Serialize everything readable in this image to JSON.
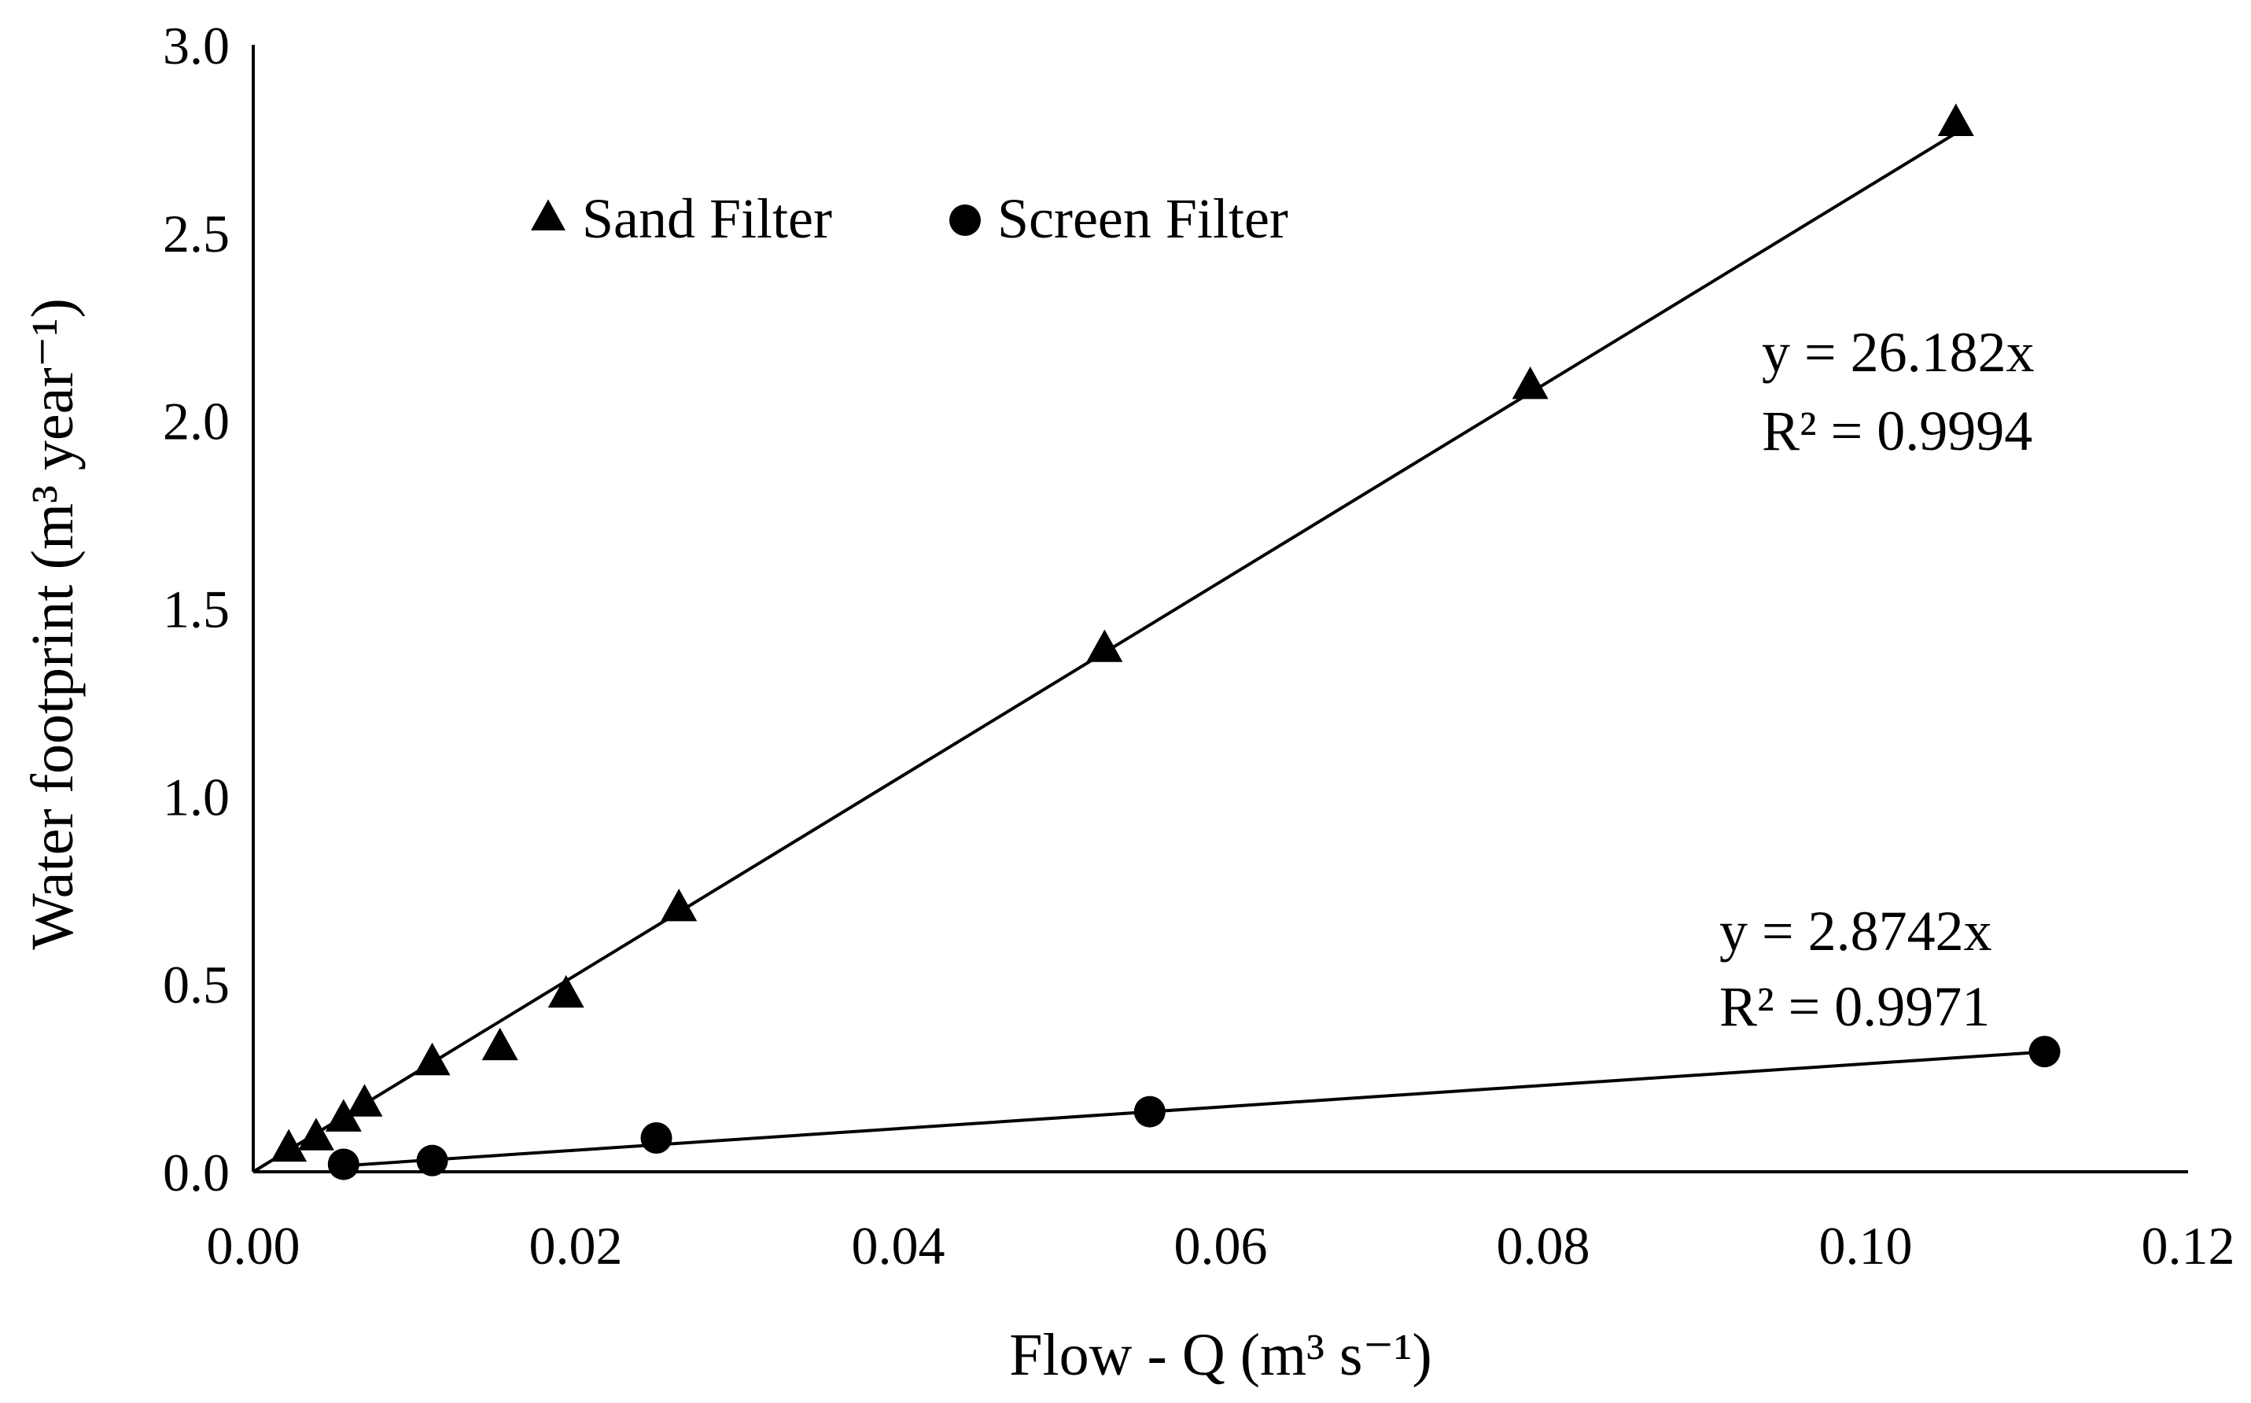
{
  "chart_data": {
    "type": "scatter",
    "title": "",
    "xlabel": "Flow - Q (m³ s⁻¹)",
    "ylabel": "Water footprint (m³ year⁻¹)",
    "xlim": [
      0,
      0.12
    ],
    "ylim": [
      0,
      3.0
    ],
    "x_ticks": [
      "0.00",
      "0.02",
      "0.04",
      "0.06",
      "0.08",
      "0.10",
      "0.12"
    ],
    "y_ticks": [
      "0.0",
      "0.5",
      "1.0",
      "1.5",
      "2.0",
      "2.5",
      "3.0"
    ],
    "grid": false,
    "legend_position": "top-left",
    "series": [
      {
        "name": "Sand Filter",
        "marker": "triangle",
        "color": "#000000",
        "points": [
          {
            "x": 0.0022,
            "y": 0.06
          },
          {
            "x": 0.0039,
            "y": 0.09
          },
          {
            "x": 0.0056,
            "y": 0.14
          },
          {
            "x": 0.0069,
            "y": 0.18
          },
          {
            "x": 0.0111,
            "y": 0.29
          },
          {
            "x": 0.0153,
            "y": 0.33
          },
          {
            "x": 0.0194,
            "y": 0.47
          },
          {
            "x": 0.0264,
            "y": 0.7
          },
          {
            "x": 0.0528,
            "y": 1.39
          },
          {
            "x": 0.0792,
            "y": 2.09
          },
          {
            "x": 0.1056,
            "y": 2.79
          }
        ],
        "trendline": {
          "slope": 26.182,
          "x_range": [
            0,
            0.1056
          ],
          "equation": "y = 26.182x",
          "r2": "R² = 0.9994"
        }
      },
      {
        "name": "Screen Filter",
        "marker": "circle",
        "color": "#000000",
        "points": [
          {
            "x": 0.0056,
            "y": 0.02
          },
          {
            "x": 0.0111,
            "y": 0.03
          },
          {
            "x": 0.025,
            "y": 0.09
          },
          {
            "x": 0.0556,
            "y": 0.16
          },
          {
            "x": 0.1111,
            "y": 0.32
          }
        ],
        "trendline": {
          "slope": 2.8742,
          "x_range": [
            0.0056,
            0.1111
          ],
          "equation": "y = 2.8742x",
          "r2": "R² = 0.9971"
        }
      }
    ]
  }
}
